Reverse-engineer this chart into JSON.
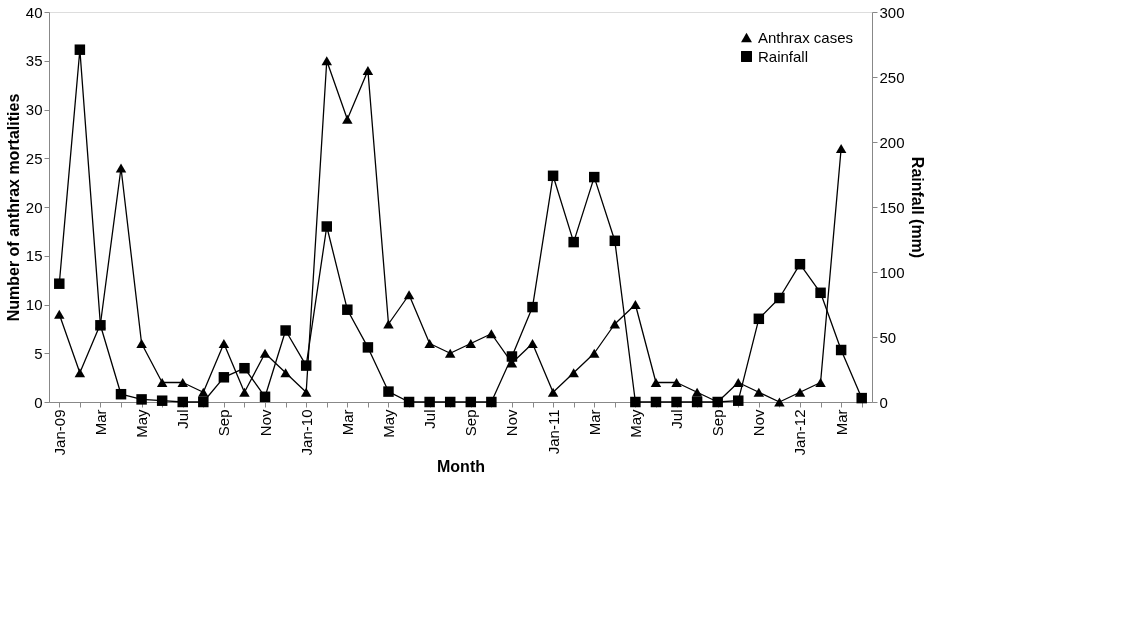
{
  "chart_data": {
    "type": "line",
    "xlabel": "Month",
    "ylabel": "Number of anthrax mortalities",
    "y2label": "Rainfall (mm)",
    "categories": [
      "Jan-09",
      null,
      "Mar",
      null,
      "May",
      null,
      "Jul",
      null,
      "Sep",
      null,
      "Nov",
      null,
      "Jan-10",
      null,
      "Mar",
      null,
      "May",
      null,
      "Jul",
      null,
      "Sep",
      null,
      "Nov",
      null,
      "Jan-11",
      null,
      "Mar",
      null,
      "May",
      null,
      "Jul",
      null,
      "Sep",
      null,
      "Nov",
      null,
      "Jan-12",
      null,
      "Mar",
      null
    ],
    "series": [
      {
        "name": "Anthrax cases",
        "color": "#000000",
        "marker": "triangle",
        "values": [
          9,
          3,
          8,
          24,
          6,
          2,
          2,
          1,
          6,
          1,
          5,
          3,
          1,
          35,
          29,
          34,
          8,
          11,
          6,
          5,
          6,
          7,
          4,
          6,
          1,
          3,
          5,
          8,
          10,
          2,
          2,
          1,
          0,
          2,
          1,
          0,
          1,
          2,
          26,
          null
        ]
      },
      {
        "name": "Rainfall",
        "color": "#000000",
        "marker": "square",
        "axis": "y2",
        "values": [
          91,
          271,
          59,
          6,
          2,
          1,
          0,
          0,
          19,
          26,
          4,
          55,
          28,
          135,
          71,
          42,
          8,
          0,
          0,
          0,
          0,
          0,
          35,
          73,
          174,
          123,
          173,
          124,
          0,
          0,
          0,
          0,
          0,
          1,
          64,
          80,
          106,
          84,
          40,
          3
        ]
      }
    ],
    "ylim": [
      0,
      40
    ],
    "yticks": [
      0,
      5,
      10,
      15,
      20,
      25,
      30,
      35,
      40
    ],
    "y2lim": [
      0,
      300
    ],
    "y2ticks": [
      0,
      50,
      100,
      150,
      200,
      250,
      300
    ],
    "grid": false,
    "legend": "top right",
    "line_style": "solid"
  }
}
